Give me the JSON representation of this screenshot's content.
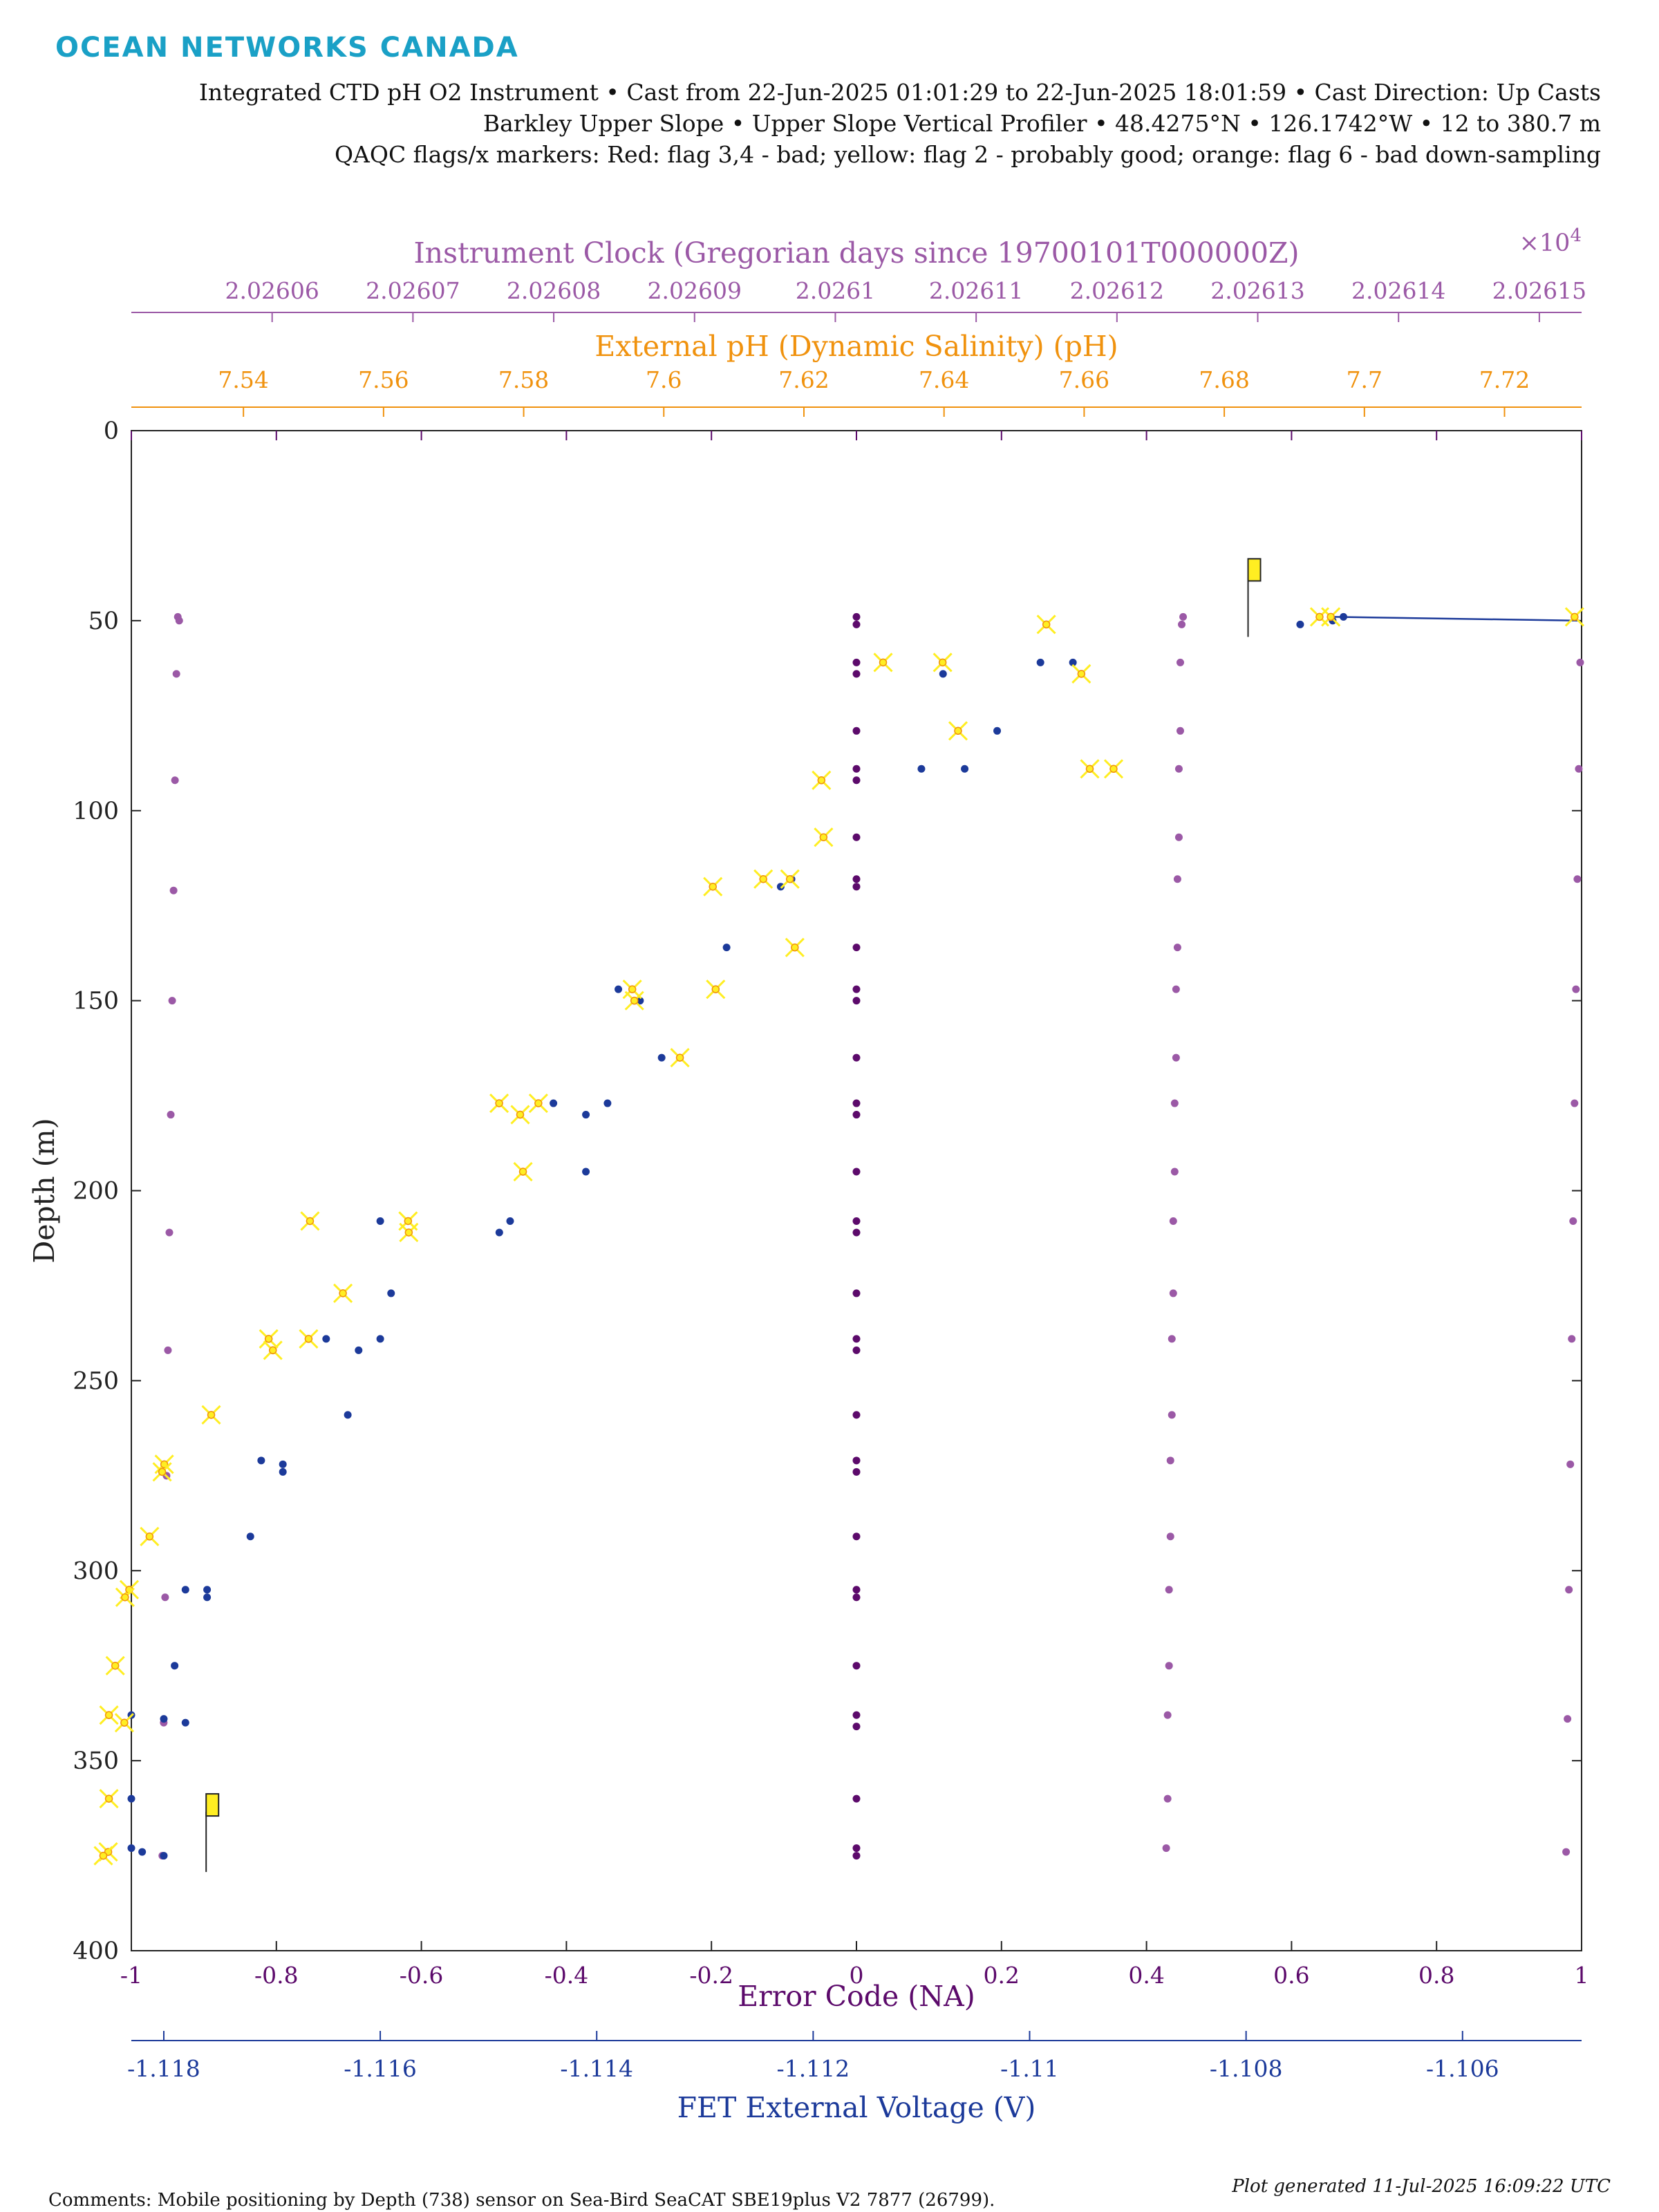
{
  "brand": "OCEAN NETWORKS CANADA",
  "header": {
    "line1": "Integrated CTD pH O2 Instrument • Cast from 22-Jun-2025 01:01:29 to 22-Jun-2025 18:01:59 • Cast Direction: Up Casts",
    "line2": "Barkley Upper Slope • Upper Slope Vertical Profiler • 48.4275°N • 126.1742°W • 12 to 380.7 m",
    "line3": "QAQC flags/x markers: Red: flag 3,4 - bad; yellow: flag 2 - probably good; orange: flag 6 - bad down-sampling"
  },
  "footer": {
    "comments": "Comments: Mobile positioning by Depth (738) sensor on Sea-Bird SeaCAT SBE19plus V2 7877 (26799).",
    "generated": "Plot generated 11-Jul-2025 16:09:22 UTC"
  },
  "colors": {
    "clock": "#9b59a6",
    "ph": "#f0920e",
    "error": "#5c0a6b",
    "fet": "#1c3a9a",
    "flag_yellow": "#ffee22"
  },
  "chart_data": {
    "type": "scatter",
    "ylabel": "Depth (m)",
    "ylim": [
      0,
      400
    ],
    "yticks": [
      "0",
      "50",
      "100",
      "150",
      "200",
      "250",
      "300",
      "350",
      "400"
    ],
    "yreversed": true,
    "axes": {
      "clock": {
        "label": "Instrument Clock (Gregorian days since 19700101T000000Z)",
        "exponent": "×10",
        "exponent_power": "4",
        "range": [
          2.02605,
          2.026153
        ],
        "ticks": [
          "2.02606",
          "2.02607",
          "2.02608",
          "2.02609",
          "2.0261",
          "2.02611",
          "2.02612",
          "2.02613",
          "2.02614",
          "2.02615"
        ],
        "tick_values": [
          2.02606,
          2.02607,
          2.02608,
          2.02609,
          2.0261,
          2.02611,
          2.02612,
          2.02613,
          2.02614,
          2.02615
        ]
      },
      "ph": {
        "label": "External pH (Dynamic Salinity) (pH)",
        "range": [
          7.524,
          7.731
        ],
        "ticks": [
          "7.54",
          "7.56",
          "7.58",
          "7.6",
          "7.62",
          "7.64",
          "7.66",
          "7.68",
          "7.7",
          "7.72"
        ],
        "tick_values": [
          7.54,
          7.56,
          7.58,
          7.6,
          7.62,
          7.64,
          7.66,
          7.68,
          7.7,
          7.72
        ]
      },
      "error": {
        "label": "Error Code (NA)",
        "range": [
          -1,
          1
        ],
        "ticks": [
          "-1",
          "-0.8",
          "-0.6",
          "-0.4",
          "-0.2",
          "0",
          "0.2",
          "0.4",
          "0.6",
          "0.8",
          "1"
        ],
        "tick_values": [
          -1,
          -0.8,
          -0.6,
          -0.4,
          -0.2,
          0,
          0.2,
          0.4,
          0.6,
          0.8,
          1
        ]
      },
      "fet": {
        "label": "FET External Voltage (V)",
        "range": [
          -1.1183,
          -1.1049
        ],
        "ticks": [
          "-1.118",
          "-1.116",
          "-1.114",
          "-1.112",
          "-1.11",
          "-1.108",
          "-1.106"
        ],
        "tick_values": [
          -1.118,
          -1.116,
          -1.114,
          -1.112,
          -1.11,
          -1.108,
          -1.106
        ]
      }
    },
    "series": [
      {
        "axis": "error",
        "style": "dots",
        "points": [
          [
            0,
            49
          ],
          [
            0,
            51
          ],
          [
            0,
            61
          ],
          [
            0,
            64
          ],
          [
            0,
            79
          ],
          [
            0,
            89
          ],
          [
            0,
            92
          ],
          [
            0,
            107
          ],
          [
            0,
            118
          ],
          [
            0,
            120
          ],
          [
            0,
            136
          ],
          [
            0,
            147
          ],
          [
            0,
            150
          ],
          [
            0,
            165
          ],
          [
            0,
            177
          ],
          [
            0,
            180
          ],
          [
            0,
            195
          ],
          [
            0,
            208
          ],
          [
            0,
            211
          ],
          [
            0,
            227
          ],
          [
            0,
            239
          ],
          [
            0,
            242
          ],
          [
            0,
            259
          ],
          [
            0,
            271
          ],
          [
            0,
            274
          ],
          [
            0,
            291
          ],
          [
            0,
            305
          ],
          [
            0,
            307
          ],
          [
            0,
            325
          ],
          [
            0,
            338
          ],
          [
            0,
            341
          ],
          [
            0,
            360
          ],
          [
            0,
            373
          ],
          [
            0,
            375
          ]
        ]
      },
      {
        "axis": "clock",
        "style": "dots",
        "points": [
          [
            2.0260533,
            49
          ],
          [
            2.0260534,
            50
          ],
          [
            2.0260532,
            64
          ],
          [
            2.0260531,
            92
          ],
          [
            2.026053,
            121
          ],
          [
            2.0260529,
            150
          ],
          [
            2.0260528,
            180
          ],
          [
            2.0260527,
            211
          ],
          [
            2.0260526,
            242
          ],
          [
            2.0260525,
            275
          ],
          [
            2.0260524,
            307
          ],
          [
            2.0260523,
            340
          ],
          [
            2.0260522,
            375
          ],
          [
            2.0261247,
            49
          ],
          [
            2.0261246,
            51
          ],
          [
            2.0261245,
            61
          ],
          [
            2.0261245,
            79
          ],
          [
            2.0261244,
            89
          ],
          [
            2.0261244,
            107
          ],
          [
            2.0261243,
            118
          ],
          [
            2.0261243,
            136
          ],
          [
            2.0261242,
            147
          ],
          [
            2.0261242,
            165
          ],
          [
            2.0261241,
            177
          ],
          [
            2.0261241,
            195
          ],
          [
            2.026124,
            208
          ],
          [
            2.026124,
            227
          ],
          [
            2.0261239,
            239
          ],
          [
            2.0261239,
            259
          ],
          [
            2.0261238,
            271
          ],
          [
            2.0261238,
            291
          ],
          [
            2.0261237,
            305
          ],
          [
            2.0261237,
            325
          ],
          [
            2.0261236,
            338
          ],
          [
            2.0261236,
            360
          ],
          [
            2.0261235,
            373
          ],
          [
            2.0261529,
            61
          ],
          [
            2.0261528,
            89
          ],
          [
            2.0261527,
            118
          ],
          [
            2.0261526,
            147
          ],
          [
            2.0261525,
            177
          ],
          [
            2.0261524,
            208
          ],
          [
            2.0261523,
            239
          ],
          [
            2.0261522,
            272
          ],
          [
            2.0261521,
            305
          ],
          [
            2.026152,
            339
          ],
          [
            2.0261519,
            374
          ]
        ]
      },
      {
        "axis": "fet",
        "style": "dots",
        "points": [
          [
            -1.1075,
            51
          ],
          [
            -1.1071,
            49
          ],
          [
            -1.1072,
            50
          ],
          [
            -1.1099,
            61
          ],
          [
            -1.1096,
            61
          ],
          [
            -1.1103,
            79
          ],
          [
            -1.1108,
            64
          ],
          [
            -1.1106,
            89
          ],
          [
            -1.111,
            89
          ],
          [
            -1.1122,
            118
          ],
          [
            -1.1123,
            120
          ],
          [
            -1.1128,
            136
          ],
          [
            -1.1129,
            147
          ],
          [
            -1.1138,
            147
          ],
          [
            -1.1136,
            150
          ],
          [
            -1.1134,
            165
          ],
          [
            -1.1144,
            177
          ],
          [
            -1.1141,
            180
          ],
          [
            -1.1141,
            195
          ],
          [
            -1.1139,
            177
          ],
          [
            -1.1148,
            208
          ],
          [
            -1.1149,
            211
          ],
          [
            -1.116,
            208
          ],
          [
            -1.1159,
            227
          ],
          [
            -1.1165,
            239
          ],
          [
            -1.116,
            239
          ],
          [
            -1.1162,
            242
          ],
          [
            -1.1163,
            259
          ],
          [
            -1.1171,
            271
          ],
          [
            -1.1169,
            272
          ],
          [
            -1.1169,
            274
          ],
          [
            -1.1172,
            291
          ],
          [
            -1.1178,
            305
          ],
          [
            -1.1176,
            305
          ],
          [
            -1.1176,
            307
          ],
          [
            -1.1179,
            325
          ],
          [
            -1.1183,
            338
          ],
          [
            -1.118,
            339
          ],
          [
            -1.1178,
            340
          ],
          [
            -1.1183,
            360
          ],
          [
            -1.1183,
            373
          ],
          [
            -1.1182,
            374
          ],
          [
            -1.118,
            375
          ]
        ]
      },
      {
        "axis": "ph",
        "style": "flagged",
        "points": [
          [
            7.6936,
            49
          ],
          [
            7.6952,
            49
          ],
          [
            7.73,
            49
          ],
          [
            7.6546,
            51
          ],
          [
            7.6398,
            61
          ],
          [
            7.6313,
            61
          ],
          [
            7.6596,
            64
          ],
          [
            7.642,
            79
          ],
          [
            7.6225,
            92
          ],
          [
            7.6642,
            89
          ],
          [
            7.6608,
            89
          ],
          [
            7.6228,
            107
          ],
          [
            7.6142,
            118
          ],
          [
            7.618,
            118
          ],
          [
            7.607,
            120
          ],
          [
            7.6187,
            136
          ],
          [
            7.5955,
            147
          ],
          [
            7.5958,
            150
          ],
          [
            7.6074,
            147
          ],
          [
            7.6023,
            165
          ],
          [
            7.5765,
            177
          ],
          [
            7.5821,
            177
          ],
          [
            7.5795,
            180
          ],
          [
            7.5799,
            195
          ],
          [
            7.5495,
            208
          ],
          [
            7.5635,
            208
          ],
          [
            7.5636,
            211
          ],
          [
            7.5542,
            227
          ],
          [
            7.5493,
            239
          ],
          [
            7.5436,
            239
          ],
          [
            7.5442,
            242
          ],
          [
            7.5354,
            259
          ],
          [
            7.5287,
            272
          ],
          [
            7.5284,
            274
          ],
          [
            7.5266,
            291
          ],
          [
            7.5237,
            305
          ],
          [
            7.5231,
            307
          ],
          [
            7.5217,
            325
          ],
          [
            7.5208,
            338
          ],
          [
            7.523,
            340
          ],
          [
            7.5208,
            360
          ],
          [
            7.5207,
            374
          ],
          [
            7.52,
            375
          ]
        ]
      }
    ],
    "flag_markers": [
      [
        2.02613,
        37
      ],
      [
        2.026056,
        362
      ]
    ]
  }
}
